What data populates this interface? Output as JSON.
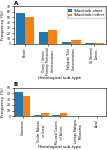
{
  "chart_data": [
    {
      "type": "bar",
      "title": "A",
      "categories": [
        "Breast",
        "Ovary / Uterus\nPrimary Peritoneal\nCarcinomatosis",
        "Fallopian Tube\nCarcinomatosis",
        "GI Stromal\nTumors"
      ],
      "series": [
        {
          "name": "Tofacitinib alone",
          "values": [
            58,
            22,
            4,
            1
          ]
        },
        {
          "name": "Tofacitinib+other",
          "values": [
            50,
            25,
            8,
            2
          ]
        }
      ],
      "x_label": "Histological sub-type",
      "y_label": "Frequency (%)",
      "ylim": [
        0,
        70
      ],
      "yticks": [
        0,
        10,
        20,
        30,
        40,
        50,
        60,
        70
      ],
      "legend": "upper right"
    },
    {
      "type": "bar",
      "title": "B",
      "categories": [
        "Cutaneous",
        "Ocular Adnexa\nor Uveal",
        "Mucosal Causes\nof Actinic",
        "Lentigo Maligna\nMelanoma",
        "Acral"
      ],
      "series": [
        {
          "values": [
            42,
            3,
            3,
            1,
            0.5
          ]
        },
        {
          "values": [
            35,
            6,
            6,
            1.5,
            1
          ]
        }
      ],
      "x_label": "Histological sub-type",
      "y_label": "Frequency (%)",
      "ylim": [
        0,
        50
      ],
      "yticks": [
        0,
        10,
        20,
        30,
        40,
        50
      ]
    }
  ]
}
